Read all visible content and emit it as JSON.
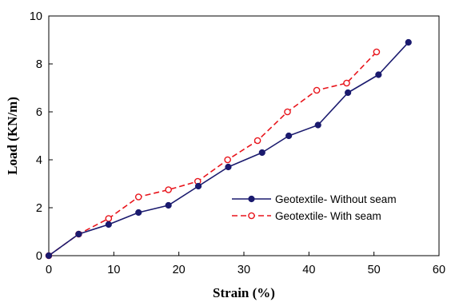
{
  "chart_data": {
    "type": "line",
    "title": "",
    "xlabel": "Strain (%)",
    "ylabel": "Load (KN/m)",
    "xlim": [
      0,
      60
    ],
    "ylim": [
      0,
      10
    ],
    "xticks": [
      0,
      10,
      20,
      30,
      40,
      50,
      60
    ],
    "yticks": [
      0,
      2,
      4,
      6,
      8,
      10
    ],
    "grid": false,
    "legend_position": "center-right",
    "series": [
      {
        "name": "Geotextile- Without seam",
        "color": "#1a1a6e",
        "line_style": "solid",
        "marker": "filled-circle",
        "x": [
          0,
          4.6,
          9.2,
          13.8,
          18.4,
          23.0,
          27.6,
          32.8,
          36.9,
          41.4,
          46.0,
          50.7,
          55.3
        ],
        "y": [
          0,
          0.9,
          1.3,
          1.8,
          2.1,
          2.9,
          3.7,
          4.3,
          5.0,
          5.45,
          6.8,
          7.55,
          8.9
        ]
      },
      {
        "name": "Geotextile- With seam",
        "color": "#e8141b",
        "line_style": "dashed",
        "marker": "open-circle",
        "x": [
          0,
          4.6,
          9.2,
          13.8,
          18.4,
          22.9,
          27.5,
          32.1,
          36.7,
          41.2,
          45.8,
          50.4
        ],
        "y": [
          0,
          0.9,
          1.55,
          2.45,
          2.75,
          3.1,
          4.0,
          4.8,
          6.0,
          6.9,
          7.2,
          8.5
        ]
      }
    ]
  }
}
